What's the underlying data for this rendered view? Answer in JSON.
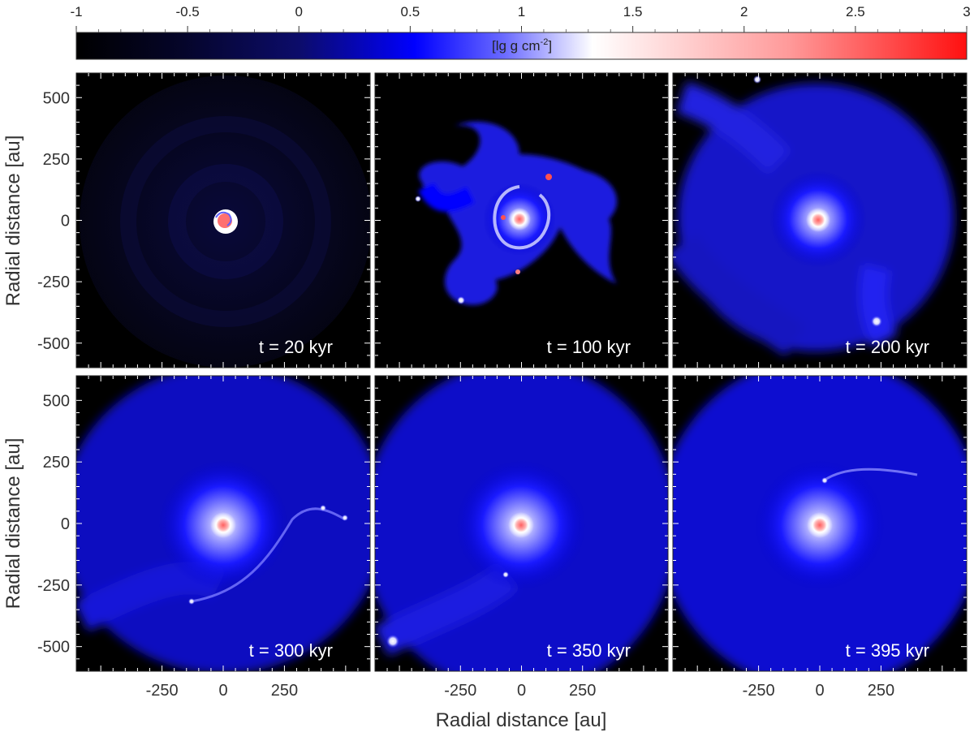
{
  "colorbar": {
    "ticks": [
      "-1",
      "-0.5",
      "0",
      "0.5",
      "1",
      "1.5",
      "2",
      "2.5",
      "3"
    ],
    "range": [
      -1,
      3
    ],
    "unit_label": "[lg g cm",
    "unit_superscript": "-2",
    "unit_close": "]",
    "colormap": [
      "#000000",
      "#0a0a40",
      "#0000ff",
      "#ffffff",
      "#ff2020"
    ]
  },
  "axes": {
    "xlabel": "Radial distance [au]",
    "ylabel": "Radial distance [au]",
    "x_ticks": [
      "-250",
      "0",
      "250"
    ],
    "y_ticks": [
      "500",
      "250",
      "0",
      "-250",
      "-500"
    ],
    "range": [
      -600,
      600
    ]
  },
  "chart_data": {
    "type": "heatmap",
    "quantity": "[lg g cm-2]",
    "colorbar_range": [
      -1,
      3
    ],
    "panels": [
      {
        "label": "t = 20 kyr"
      },
      {
        "label": "t = 100 kyr"
      },
      {
        "label": "t = 200 kyr"
      },
      {
        "label": "t = 300 kyr"
      },
      {
        "label": "t = 350 kyr"
      },
      {
        "label": "t = 395 kyr"
      }
    ],
    "xlabel": "Radial distance [au]",
    "ylabel": "Radial distance [au]",
    "xlim": [
      -600,
      600
    ],
    "ylim": [
      -600,
      600
    ]
  }
}
